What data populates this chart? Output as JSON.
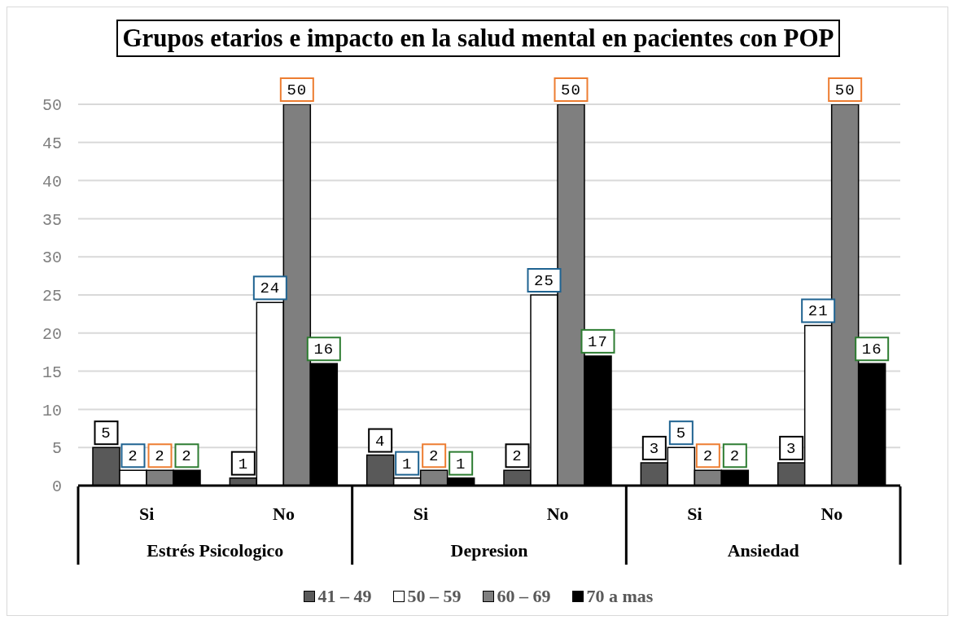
{
  "chart_data": {
    "type": "bar",
    "title": "Grupos etarios e impacto en la salud mental en pacientes con POP",
    "categories": [
      "Si",
      "No",
      "Si",
      "No",
      "Si",
      "No"
    ],
    "series": [
      {
        "name": "41 – 49",
        "color": "#595959",
        "values": [
          5,
          1,
          4,
          2,
          3,
          3
        ]
      },
      {
        "name": "50 – 59",
        "color": "#ffffff",
        "values": [
          2,
          24,
          1,
          25,
          5,
          21
        ]
      },
      {
        "name": "60 – 69",
        "color": "#7f7f7f",
        "values": [
          2,
          50,
          2,
          50,
          2,
          50
        ]
      },
      {
        "name": "70 a mas",
        "color": "#000000",
        "values": [
          2,
          16,
          1,
          17,
          2,
          16
        ]
      }
    ],
    "annotations": [
      "Estrés Psicologico",
      "Depresion",
      "Ansiedad"
    ],
    "ylim": [
      0,
      50
    ],
    "yticks": [
      0,
      5,
      10,
      15,
      20,
      25,
      30,
      35,
      40,
      45,
      50
    ],
    "grid": "y",
    "legend": "bottom",
    "data_labels": true
  }
}
